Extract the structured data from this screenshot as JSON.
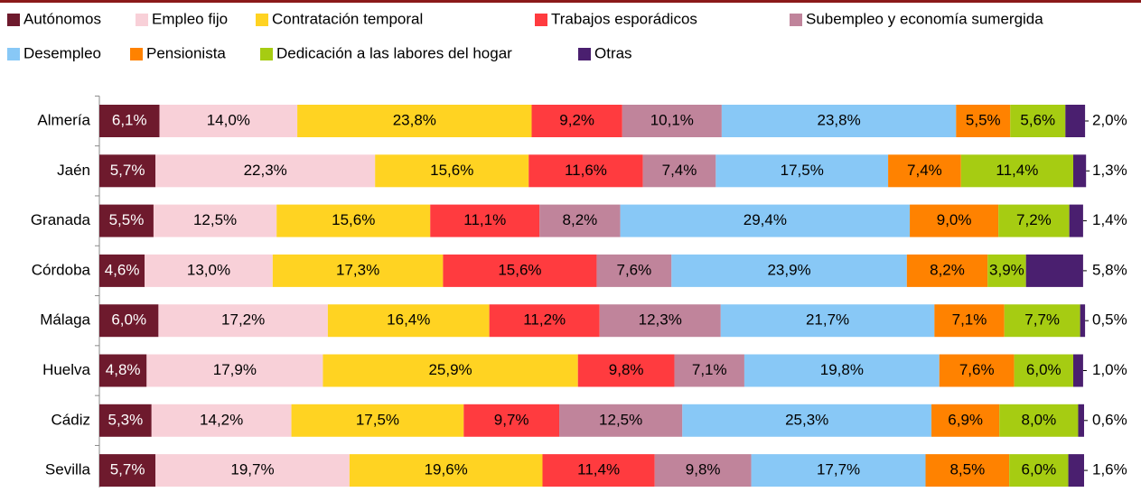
{
  "chart_data": {
    "type": "stacked_barh",
    "categories": [
      "Almería",
      "Jaén",
      "Granada",
      "Córdoba",
      "Málaga",
      "Huelva",
      "Cádiz",
      "Sevilla"
    ],
    "series": [
      {
        "name": "Autónomos",
        "color": "#6e1a2d",
        "values": [
          6.1,
          5.7,
          5.5,
          4.6,
          6.0,
          4.8,
          5.3,
          5.7
        ],
        "value_labels": [
          "6,1%",
          "5,7%",
          "5,5%",
          "4,6%",
          "6,0%",
          "4,8%",
          "5,3%",
          "5,7%"
        ]
      },
      {
        "name": "Empleo fijo",
        "color": "#f8d0d8",
        "values": [
          14.0,
          22.3,
          12.5,
          13.0,
          17.2,
          17.9,
          14.2,
          19.7
        ],
        "value_labels": [
          "14,0%",
          "22,3%",
          "12,5%",
          "13,0%",
          "17,2%",
          "17,9%",
          "14,2%",
          "19,7%"
        ]
      },
      {
        "name": "Contratación temporal",
        "color": "#ffd322",
        "values": [
          23.8,
          15.6,
          15.6,
          17.3,
          16.4,
          25.9,
          17.5,
          19.6
        ],
        "value_labels": [
          "23,8%",
          "15,6%",
          "15,6%",
          "17,3%",
          "16,4%",
          "25,9%",
          "17,5%",
          "19,6%"
        ]
      },
      {
        "name": "Trabajos esporádicos",
        "color": "#ff3b3f",
        "values": [
          9.2,
          11.6,
          11.1,
          15.6,
          11.2,
          9.8,
          9.7,
          11.4
        ],
        "value_labels": [
          "9,2%",
          "11,6%",
          "11,1%",
          "15,6%",
          "11,2%",
          "9,8%",
          "9,7%",
          "11,4%"
        ]
      },
      {
        "name": "Subempleo y economía sumergida",
        "color": "#c0849b",
        "values": [
          10.1,
          7.4,
          8.2,
          7.6,
          12.3,
          7.1,
          12.5,
          9.8
        ],
        "value_labels": [
          "10,1%",
          "7,4%",
          "8,2%",
          "7,6%",
          "12,3%",
          "7,1%",
          "12,5%",
          "9,8%"
        ]
      },
      {
        "name": "Desempleo",
        "color": "#88c8f6",
        "values": [
          23.8,
          17.5,
          29.4,
          23.9,
          21.7,
          19.8,
          25.3,
          17.7
        ],
        "value_labels": [
          "23,8%",
          "17,5%",
          "29,4%",
          "23,9%",
          "21,7%",
          "19,8%",
          "25,3%",
          "17,7%"
        ]
      },
      {
        "name": "Pensionista",
        "color": "#ff8200",
        "values": [
          5.5,
          7.4,
          9.0,
          8.2,
          7.1,
          7.6,
          6.9,
          8.5
        ],
        "value_labels": [
          "5,5%",
          "7,4%",
          "9,0%",
          "8,2%",
          "7,1%",
          "7,6%",
          "6,9%",
          "8,5%"
        ]
      },
      {
        "name": "Dedicación a las labores del hogar",
        "color": "#a6cc12",
        "values": [
          5.6,
          11.4,
          7.2,
          3.9,
          7.7,
          6.0,
          8.0,
          6.0
        ],
        "value_labels": [
          "5,6%",
          "11,4%",
          "7,2%",
          "3,9%",
          "7,7%",
          "6,0%",
          "8,0%",
          "6,0%"
        ]
      },
      {
        "name": "Otras",
        "color": "#4a1f6f",
        "values": [
          2.0,
          1.3,
          1.4,
          5.8,
          0.5,
          1.0,
          0.6,
          1.6
        ],
        "value_labels": [
          "2,0%",
          "1,3%",
          "1,4%",
          "5,8%",
          "0,5%",
          "1,0%",
          "0,6%",
          "1,6%"
        ]
      }
    ]
  }
}
